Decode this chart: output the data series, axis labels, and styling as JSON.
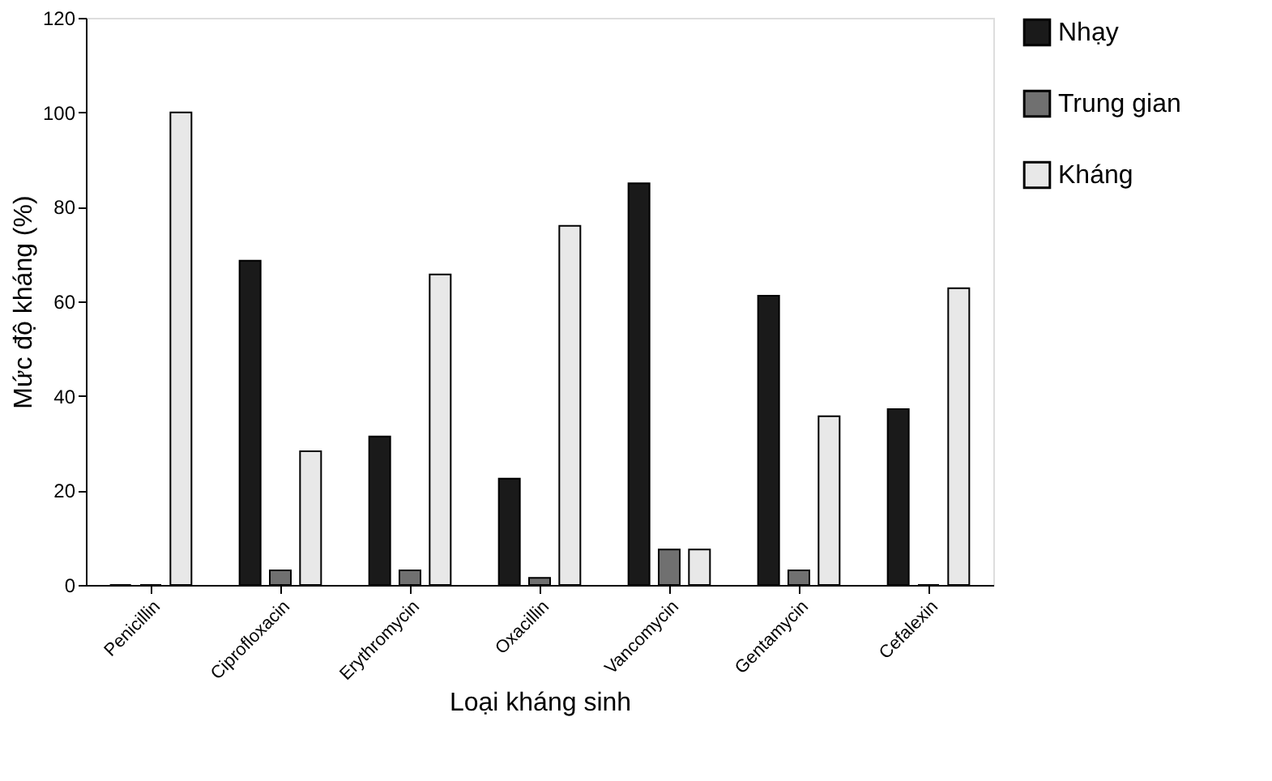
{
  "chart_data": {
    "type": "bar",
    "xlabel": "Loại kháng sinh",
    "ylabel": "Mức độ kháng (%)",
    "categories": [
      "Penicillin",
      "Ciprofloxacin",
      "Erythromycin",
      "Oxacillin",
      "Vancomycin",
      "Gentamycin",
      "Cefalexin"
    ],
    "series": [
      {
        "name": "Nhạy",
        "color": "#1a1a1a",
        "values": [
          0,
          68.6,
          31.4,
          22.5,
          85,
          61.2,
          37.2
        ]
      },
      {
        "name": "Trung gian",
        "color": "#707070",
        "values": [
          0,
          3.1,
          3.1,
          1.5,
          7.5,
          3.1,
          0
        ]
      },
      {
        "name": "Kháng",
        "color": "#e8e8e8",
        "values": [
          100,
          28.3,
          65.7,
          76,
          7.5,
          35.7,
          62.8
        ]
      }
    ],
    "ylim": [
      0,
      120
    ],
    "yticks": [
      0,
      20,
      40,
      60,
      80,
      100,
      120
    ],
    "grid": false,
    "legend": "right"
  }
}
